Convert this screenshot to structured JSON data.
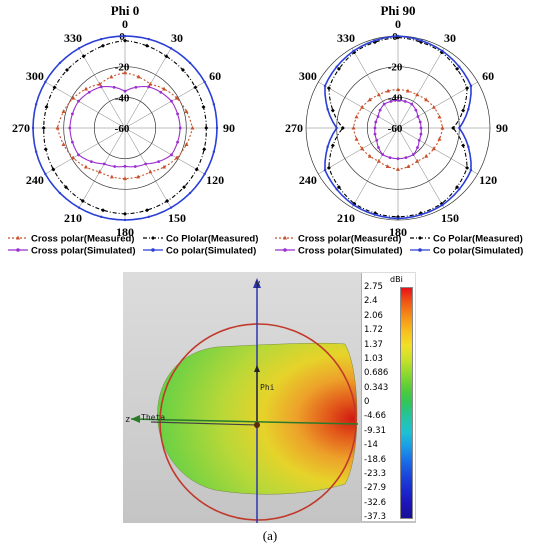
{
  "chart_data": [
    {
      "type": "polar",
      "title": "Phi 0",
      "angle_labels": [
        "0",
        "30",
        "60",
        "90",
        "120",
        "150",
        "180",
        "210",
        "240",
        "270",
        "300",
        "330"
      ],
      "radial_labels": [
        "0",
        "-20",
        "-40",
        "-60"
      ],
      "rlim": [
        -60,
        0
      ],
      "grid": true,
      "legend_position": "bottom",
      "series": [
        {
          "name": "Cross polar(Measured)",
          "color": "#c8502a",
          "marker": "triangle",
          "angles": [
            0,
            30,
            60,
            90,
            120,
            150,
            180,
            210,
            240,
            270,
            300,
            330
          ],
          "values": [
            -24,
            -27,
            -21,
            -16,
            -21,
            -27,
            -27,
            -27,
            -21,
            -16,
            -21,
            -27
          ]
        },
        {
          "name": "Co Plolar(Measured)",
          "color": "#000000",
          "marker": "diamond",
          "angles": [
            0,
            30,
            60,
            90,
            120,
            150,
            180,
            210,
            240,
            270,
            300,
            330
          ],
          "values": [
            -3,
            -6,
            -7,
            -7,
            -6,
            -5,
            -4,
            -5,
            -6,
            -7,
            -7,
            -6
          ]
        },
        {
          "name": "Cross polar(Simulated)",
          "color": "#9b2fcf",
          "marker": "circle",
          "angles": [
            0,
            30,
            60,
            90,
            120,
            150,
            180,
            210,
            240,
            270,
            300,
            330
          ],
          "values": [
            -36,
            -29,
            -25,
            -24,
            -25,
            -33,
            -35,
            -33,
            -25,
            -24,
            -25,
            -29
          ]
        },
        {
          "name": "Co polar(Simulated)",
          "color": "#2a3fd6",
          "marker": "star",
          "angles": [
            0,
            30,
            60,
            90,
            120,
            150,
            180,
            210,
            240,
            270,
            300,
            330
          ],
          "values": [
            0,
            0,
            0,
            0,
            0,
            0,
            0,
            0,
            0,
            0,
            0,
            0
          ]
        }
      ]
    },
    {
      "type": "polar",
      "title": "Phi 90",
      "angle_labels": [
        "0",
        "30",
        "60",
        "90",
        "120",
        "150",
        "180",
        "210",
        "240",
        "270",
        "300",
        "330"
      ],
      "radial_labels": [
        "0",
        "-20",
        "-40",
        "-60"
      ],
      "rlim": [
        -60,
        0
      ],
      "grid": true,
      "legend_position": "bottom",
      "series": [
        {
          "name": "Cross polar(Measured)",
          "color": "#c8502a",
          "marker": "triangle",
          "angles": [
            0,
            30,
            60,
            90,
            120,
            150,
            180,
            210,
            240,
            270,
            300,
            330
          ],
          "values": [
            -35,
            -35,
            -33,
            -31,
            -33,
            -35,
            -33,
            -35,
            -33,
            -31,
            -33,
            -35
          ]
        },
        {
          "name": "Co Polar(Measured)",
          "color": "#000000",
          "marker": "diamond",
          "angles": [
            0,
            30,
            60,
            90,
            120,
            150,
            180,
            210,
            240,
            270,
            300,
            330
          ],
          "values": [
            -1,
            -3,
            -8,
            -24,
            -8,
            -3,
            -2,
            -3,
            -8,
            -24,
            -8,
            -3
          ]
        },
        {
          "name": "Cross polar(Simulated)",
          "color": "#9b2fcf",
          "marker": "circle",
          "angles": [
            0,
            30,
            60,
            90,
            120,
            150,
            180,
            210,
            240,
            270,
            300,
            330
          ],
          "values": [
            -42,
            -42,
            -45,
            -45,
            -44,
            -40,
            -40,
            -40,
            -44,
            -45,
            -45,
            -42
          ]
        },
        {
          "name": "Co polar(Simulated)",
          "color": "#2a3fd6",
          "marker": "star",
          "angles": [
            0,
            30,
            60,
            90,
            120,
            150,
            180,
            210,
            240,
            270,
            300,
            330
          ],
          "values": [
            0,
            -2,
            -5,
            -20,
            -5,
            -2,
            -1,
            -2,
            -5,
            -20,
            -5,
            -2
          ]
        }
      ]
    }
  ],
  "pattern_3d": {
    "colorbar_unit": "dBi",
    "colorbar_labels": [
      "2.75",
      "2.4",
      "2.06",
      "1.72",
      "1.37",
      "1.03",
      "0.686",
      "0.343",
      "0",
      "-4.66",
      "-9.31",
      "-14",
      "-18.6",
      "-23.3",
      "-27.9",
      "-32.6",
      "-37.3"
    ],
    "colorbar_colors": [
      "#e8101a",
      "#f05a14",
      "#f59018",
      "#f8be1e",
      "#f2df26",
      "#c8e02a",
      "#8cd82e",
      "#56cc38",
      "#2ec65a",
      "#24c4a2",
      "#1ec2d2",
      "#1a9ee6",
      "#1a6ee8",
      "#1a48dc",
      "#1a2ad0",
      "#1c14b8",
      "#1a0e96"
    ],
    "axes": {
      "y": "y",
      "z": "z",
      "theta": "Theta",
      "phi": "Phi"
    }
  },
  "caption": "(a)"
}
